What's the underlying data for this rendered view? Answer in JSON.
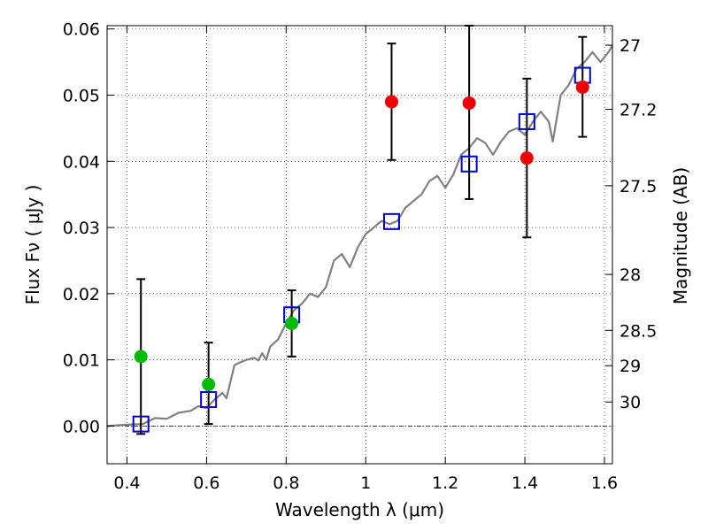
{
  "chart_data": {
    "type": "scatter",
    "xlabel": "Wavelength  λ (μm)",
    "ylabel": "Flux  Fν  ( μJy )",
    "ylabel_right": "Magnitude (AB)",
    "xlim": [
      0.35,
      1.62
    ],
    "ylim": [
      -0.0057,
      0.0605
    ],
    "x_ticks": [
      0.4,
      0.6,
      0.8,
      1.0,
      1.2,
      1.4,
      1.6
    ],
    "x_tick_labels": [
      "0.4",
      "0.6",
      "0.8",
      "1",
      "1.2",
      "1.4",
      "1.6"
    ],
    "y_ticks": [
      0.0,
      0.01,
      0.02,
      0.03,
      0.04,
      0.05,
      0.06
    ],
    "y_tick_labels": [
      "0.00",
      "0.01",
      "0.02",
      "0.03",
      "0.04",
      "0.05",
      "0.06"
    ],
    "right_ticks": [
      {
        "label": "27",
        "mag": 27.0
      },
      {
        "label": "27.2",
        "mag": 27.2
      },
      {
        "label": "27.5",
        "mag": 27.5
      },
      {
        "label": "28",
        "mag": 28.0
      },
      {
        "label": "28.5",
        "mag": 28.5
      },
      {
        "label": "29",
        "mag": 29.0
      },
      {
        "label": "30",
        "mag": 30.0
      }
    ],
    "grid": true,
    "zero_line": true,
    "series": [
      {
        "kind": "line",
        "color": "#808080",
        "points": [
          [
            0.35,
            0.0
          ],
          [
            0.4,
            0.0002
          ],
          [
            0.44,
            0.0003
          ],
          [
            0.47,
            0.0012
          ],
          [
            0.5,
            0.0011
          ],
          [
            0.53,
            0.002
          ],
          [
            0.56,
            0.0023
          ],
          [
            0.58,
            0.003
          ],
          [
            0.6,
            0.0027
          ],
          [
            0.62,
            0.004
          ],
          [
            0.64,
            0.005
          ],
          [
            0.65,
            0.0042
          ],
          [
            0.67,
            0.0092
          ],
          [
            0.68,
            0.0095
          ],
          [
            0.7,
            0.01
          ],
          [
            0.72,
            0.0103
          ],
          [
            0.73,
            0.0099
          ],
          [
            0.74,
            0.011
          ],
          [
            0.75,
            0.01
          ],
          [
            0.76,
            0.012
          ],
          [
            0.78,
            0.0131
          ],
          [
            0.8,
            0.0155
          ],
          [
            0.82,
            0.0175
          ],
          [
            0.84,
            0.0185
          ],
          [
            0.86,
            0.02
          ],
          [
            0.88,
            0.0195
          ],
          [
            0.9,
            0.021
          ],
          [
            0.92,
            0.025
          ],
          [
            0.94,
            0.026
          ],
          [
            0.96,
            0.024
          ],
          [
            0.98,
            0.027
          ],
          [
            1.0,
            0.029
          ],
          [
            1.02,
            0.03
          ],
          [
            1.04,
            0.031
          ],
          [
            1.06,
            0.0305
          ],
          [
            1.08,
            0.031
          ],
          [
            1.1,
            0.033
          ],
          [
            1.12,
            0.034
          ],
          [
            1.14,
            0.035
          ],
          [
            1.16,
            0.037
          ],
          [
            1.18,
            0.0378
          ],
          [
            1.2,
            0.036
          ],
          [
            1.22,
            0.038
          ],
          [
            1.24,
            0.041
          ],
          [
            1.26,
            0.042
          ],
          [
            1.28,
            0.0435
          ],
          [
            1.3,
            0.0428
          ],
          [
            1.32,
            0.041
          ],
          [
            1.34,
            0.043
          ],
          [
            1.36,
            0.0445
          ],
          [
            1.38,
            0.045
          ],
          [
            1.4,
            0.044
          ],
          [
            1.42,
            0.046
          ],
          [
            1.44,
            0.0475
          ],
          [
            1.46,
            0.046
          ],
          [
            1.47,
            0.043
          ],
          [
            1.49,
            0.05
          ],
          [
            1.51,
            0.0515
          ],
          [
            1.53,
            0.054
          ],
          [
            1.55,
            0.055
          ],
          [
            1.57,
            0.0565
          ],
          [
            1.59,
            0.055
          ],
          [
            1.61,
            0.0565
          ],
          [
            1.62,
            0.0575
          ]
        ]
      },
      {
        "kind": "open-square",
        "color": "#0000cc",
        "points": [
          [
            0.435,
            0.0003
          ],
          [
            0.605,
            0.004
          ],
          [
            0.814,
            0.0168
          ],
          [
            1.065,
            0.0309
          ],
          [
            1.26,
            0.0396
          ],
          [
            1.405,
            0.046
          ],
          [
            1.545,
            0.053
          ]
        ]
      },
      {
        "kind": "points-with-errors",
        "color": "#00bb00",
        "points": [
          {
            "x": 0.435,
            "y": 0.0105,
            "yerr_low": -0.0012,
            "yerr_high": 0.0222
          },
          {
            "x": 0.605,
            "y": 0.0063,
            "yerr_low": 0.0003,
            "yerr_high": 0.0126
          },
          {
            "x": 0.814,
            "y": 0.0155,
            "yerr_low": 0.0105,
            "yerr_high": 0.0205
          }
        ]
      },
      {
        "kind": "points-with-errors",
        "color": "#ee0000",
        "points": [
          {
            "x": 1.065,
            "y": 0.049,
            "yerr_low": 0.0402,
            "yerr_high": 0.0578
          },
          {
            "x": 1.26,
            "y": 0.0488,
            "yerr_low": 0.0343,
            "yerr_high": 0.0605
          },
          {
            "x": 1.405,
            "y": 0.0405,
            "yerr_low": 0.0285,
            "yerr_high": 0.0525
          },
          {
            "x": 1.545,
            "y": 0.0512,
            "yerr_low": 0.0437,
            "yerr_high": 0.0588
          }
        ]
      }
    ]
  }
}
